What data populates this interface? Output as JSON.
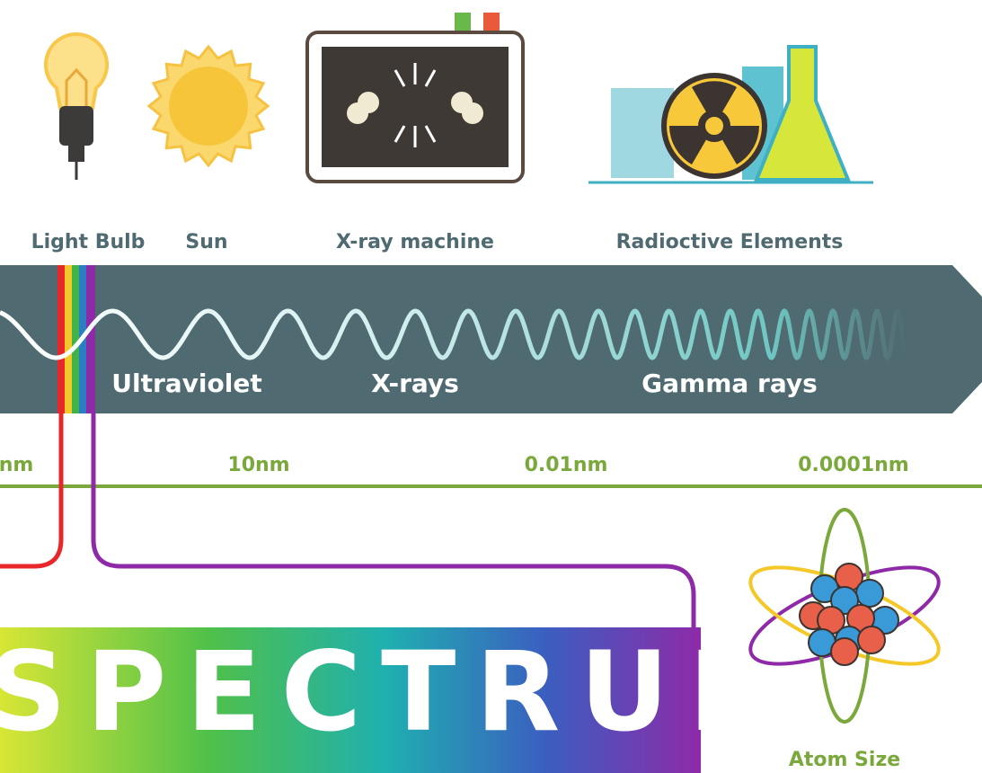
{
  "sources": [
    "Light Bulb",
    "Sun",
    "X-ray machine",
    "Radioctive Elements"
  ],
  "bands": [
    "Ultraviolet",
    "X-rays",
    "Gamma rays"
  ],
  "scale": [
    "nm",
    "10nm",
    "0.01nm",
    "0.0001nm"
  ],
  "title": "SPECTRUM",
  "atom_label": "Atom Size"
}
